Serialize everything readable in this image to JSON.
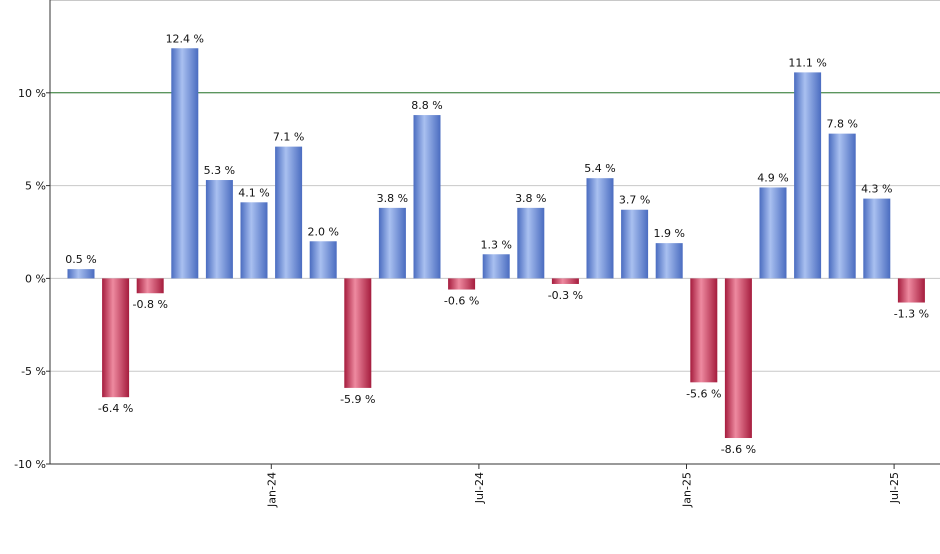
{
  "chart_data": {
    "type": "bar",
    "title": "",
    "xlabel": "",
    "ylabel": "",
    "ylim": [
      -10,
      15
    ],
    "y_ticks": [
      {
        "value": 10,
        "label": "10 %"
      },
      {
        "value": 5,
        "label": "5 %"
      },
      {
        "value": 0,
        "label": "0 %"
      },
      {
        "value": -5,
        "label": "-5 %"
      },
      {
        "value": -10,
        "label": "-10 %"
      }
    ],
    "reference_line": {
      "value": 10,
      "color": "#2e7d32"
    },
    "x_ticks": [
      {
        "index": 5.5,
        "label": "Jan-24"
      },
      {
        "index": 11.5,
        "label": "Jul-24"
      },
      {
        "index": 17.5,
        "label": "Jan-25"
      },
      {
        "index": 23.5,
        "label": "Jul-25"
      }
    ],
    "values": [
      0.5,
      -6.4,
      -0.8,
      12.4,
      5.3,
      4.1,
      7.1,
      2.0,
      -5.9,
      3.8,
      8.8,
      -0.6,
      1.3,
      3.8,
      -0.3,
      5.4,
      3.7,
      1.9,
      -5.6,
      -8.6,
      4.9,
      11.1,
      7.8,
      4.3,
      -1.3
    ],
    "labels": [
      "0.5 %",
      "-6.4 %",
      "-0.8 %",
      "12.4 %",
      "5.3 %",
      "4.1 %",
      "7.1 %",
      "2.0 %",
      "-5.9 %",
      "3.8 %",
      "8.8 %",
      "-0.6 %",
      "1.3 %",
      "3.8 %",
      "-0.3 %",
      "5.4 %",
      "3.7 %",
      "1.9 %",
      "-5.6 %",
      "-8.6 %",
      "4.9 %",
      "11.1 %",
      "7.8 %",
      "4.3 %",
      "-1.3 %"
    ],
    "colors": {
      "positive": "#6b8fd6",
      "negative": "#c8385a",
      "grid": "#c8c8c8",
      "axis": "#333333"
    }
  }
}
